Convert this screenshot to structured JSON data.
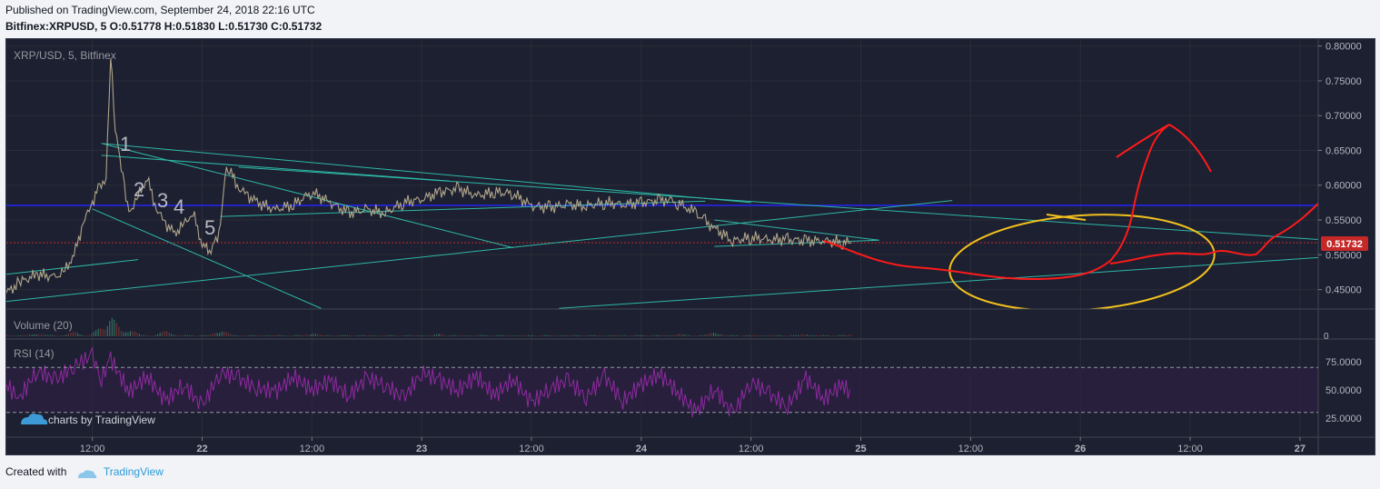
{
  "header": {
    "published": "Published on TradingView.com, September 24, 2018 22:16 UTC",
    "ohlc": "Bitfinex:XRPUSD, 5  O:0.51778 H:0.51830 L:0.51730 C:0.51732"
  },
  "chart": {
    "symbol_label": "XRP/USD, 5, Bitfinex",
    "volume_label": "Volume (20)",
    "rsi_label": "RSI (14)",
    "watermark": "charts by TradingView",
    "last_price": "0.51732",
    "volume_zero": "0"
  },
  "footer": {
    "created_with": "Created with",
    "brand": "TradingView"
  },
  "chart_data": {
    "type": "line",
    "colors": {
      "background": "#1c2030",
      "price": "#b0a58a",
      "trend": "#2fb7a7",
      "blue_line": "#2323c8",
      "red": "#ff1a1a",
      "yellow": "#f2c01e",
      "rsi": "#8f2aa0"
    },
    "price_axis": {
      "ticks": [
        "0.80000",
        "0.75000",
        "0.70000",
        "0.65000",
        "0.60000",
        "0.55000",
        "0.50000",
        "0.45000"
      ],
      "values": [
        0.8,
        0.75,
        0.7,
        0.65,
        0.6,
        0.55,
        0.5,
        0.45
      ],
      "ylim": [
        0.422,
        0.81
      ]
    },
    "rsi_axis": {
      "ticks": [
        "75.0000",
        "50.0000",
        "25.0000"
      ],
      "values": [
        75,
        50,
        25
      ],
      "ylim": [
        8,
        92
      ],
      "bands": [
        70,
        30
      ]
    },
    "time_axis": {
      "labels": [
        "12:00",
        "22",
        "12:00",
        "23",
        "12:00",
        "24",
        "12:00",
        "25",
        "12:00",
        "26",
        "12:00",
        "27"
      ],
      "t": [
        12,
        24,
        36,
        48,
        60,
        72,
        84,
        96,
        108,
        120,
        132,
        144
      ],
      "xlim": [
        2.6,
        146
      ]
    },
    "price_series": {
      "t": [
        2.6,
        4,
        6,
        8,
        9,
        10,
        11,
        12,
        12.8,
        13.5,
        14,
        14.5,
        15,
        15.5,
        16,
        17,
        18,
        19,
        20,
        21,
        22,
        23,
        24,
        24.8,
        25.5,
        26,
        26.5,
        27,
        28,
        29,
        30,
        32,
        34,
        36,
        38,
        40,
        42,
        44,
        46,
        48,
        50,
        52,
        54,
        56,
        58,
        60,
        62,
        64,
        66,
        68,
        70,
        72,
        74,
        75,
        76,
        77,
        78,
        79,
        80,
        82,
        84,
        86,
        88,
        90,
        92,
        94,
        95
      ],
      "values": [
        0.445,
        0.46,
        0.472,
        0.468,
        0.478,
        0.5,
        0.545,
        0.575,
        0.6,
        0.61,
        0.785,
        0.68,
        0.64,
        0.6,
        0.56,
        0.585,
        0.61,
        0.565,
        0.545,
        0.53,
        0.545,
        0.56,
        0.515,
        0.505,
        0.52,
        0.54,
        0.615,
        0.622,
        0.595,
        0.585,
        0.575,
        0.565,
        0.572,
        0.59,
        0.575,
        0.56,
        0.565,
        0.56,
        0.575,
        0.58,
        0.59,
        0.595,
        0.585,
        0.59,
        0.588,
        0.57,
        0.568,
        0.572,
        0.57,
        0.575,
        0.572,
        0.575,
        0.578,
        0.58,
        0.574,
        0.568,
        0.56,
        0.548,
        0.538,
        0.52,
        0.525,
        0.522,
        0.522,
        0.52,
        0.52,
        0.518,
        0.517
      ]
    },
    "volume_series": {
      "t": [
        6,
        10,
        13,
        14,
        16,
        20,
        26,
        36,
        50,
        76,
        80,
        90,
        95
      ],
      "values": [
        0.15,
        0.2,
        0.45,
        0.9,
        0.35,
        0.25,
        0.3,
        0.15,
        0.12,
        0.12,
        0.2,
        0.1,
        0.08
      ]
    },
    "rsi_series": {
      "t": [
        2.6,
        4,
        6,
        8,
        10,
        12,
        13,
        14,
        16,
        18,
        20,
        22,
        24,
        26,
        28,
        30,
        32,
        34,
        36,
        38,
        40,
        42,
        44,
        46,
        48,
        50,
        52,
        54,
        56,
        58,
        60,
        62,
        64,
        66,
        68,
        70,
        72,
        74,
        76,
        78,
        80,
        82,
        84,
        86,
        88,
        90,
        92,
        94,
        95
      ],
      "values": [
        55,
        42,
        68,
        58,
        72,
        80,
        60,
        78,
        48,
        62,
        40,
        55,
        35,
        66,
        60,
        52,
        48,
        62,
        50,
        58,
        45,
        60,
        55,
        42,
        66,
        58,
        50,
        62,
        45,
        60,
        38,
        52,
        58,
        44,
        62,
        40,
        55,
        64,
        48,
        30,
        52,
        28,
        58,
        46,
        36,
        60,
        42,
        55,
        45
      ]
    },
    "horizontal_line": 0.571,
    "last_price_line": 0.5173,
    "trendlines": [
      {
        "from": [
          13,
          0.66
        ],
        "to": [
          84,
          0.575
        ]
      },
      {
        "from": [
          13,
          0.643
        ],
        "to": [
          51,
          0.606
        ]
      },
      {
        "from": [
          13,
          0.66
        ],
        "to": [
          58,
          0.51
        ]
      },
      {
        "from": [
          12,
          0.566
        ],
        "to": [
          37,
          0.423
        ]
      },
      {
        "from": [
          26,
          0.555
        ],
        "to": [
          79,
          0.577
        ]
      },
      {
        "from": [
          28,
          0.626
        ],
        "to": [
          146,
          0.522
        ]
      },
      {
        "from": [
          2.6,
          0.472
        ],
        "to": [
          17,
          0.493
        ]
      },
      {
        "from": [
          2.6,
          0.433
        ],
        "to": [
          106,
          0.578
        ]
      },
      {
        "from": [
          63,
          0.423
        ],
        "to": [
          146,
          0.496
        ]
      },
      {
        "from": [
          80,
          0.55
        ],
        "to": [
          98,
          0.521
        ]
      },
      {
        "from": [
          80,
          0.512
        ],
        "to": [
          98,
          0.521
        ]
      }
    ],
    "wave_labels": [
      "1",
      "2",
      "3",
      "4",
      "5"
    ]
  }
}
